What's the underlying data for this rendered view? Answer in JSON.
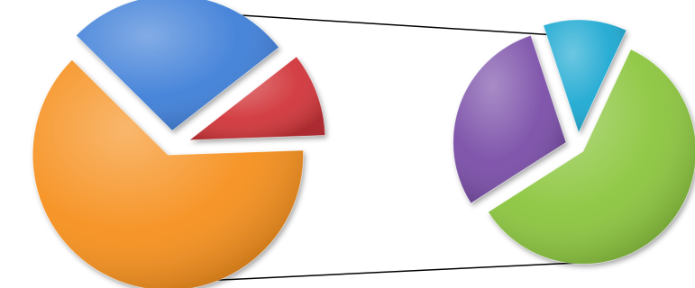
{
  "chart_data": {
    "type": "pie",
    "subtype": "pie-of-pie",
    "title": "",
    "legend": "none",
    "data_labels": "none",
    "main_pie": {
      "slices": [
        {
          "value": 63,
          "color": "#f6901e",
          "exploded": true,
          "transferred_to_secondary": false
        },
        {
          "value": 27,
          "color": "#3f7fd8",
          "exploded": true,
          "transferred_to_secondary": false
        },
        {
          "value": 10,
          "color": "#d1363a",
          "exploded": true,
          "transferred_to_secondary": false
        }
      ]
    },
    "secondary_pie": {
      "slices": [
        {
          "value": 59,
          "color": "#8cc63f",
          "exploded": true
        },
        {
          "value": 29,
          "color": "#7a4ea8",
          "exploded": true
        },
        {
          "value": 12,
          "color": "#1ea9d2",
          "exploded": true
        }
      ]
    },
    "connector_color": "#000000"
  }
}
